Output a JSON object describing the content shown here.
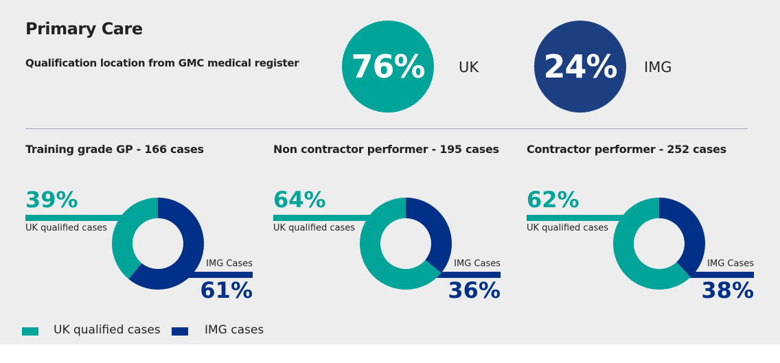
{
  "header": {
    "title": "Primary Care",
    "subtitle": "Qualification location from GMC medical register"
  },
  "summary": [
    {
      "value": "76%",
      "label": "UK",
      "color": "#00a499"
    },
    {
      "value": "24%",
      "label": "IMG",
      "color": "#1b3f80"
    }
  ],
  "chart_data": [
    {
      "type": "pie",
      "donut": true,
      "title": "Training grade GP - 166 cases",
      "categories": [
        "UK qualified cases",
        "IMG Cases"
      ],
      "values": [
        39,
        61
      ],
      "labels": [
        "39%",
        "61%"
      ]
    },
    {
      "type": "pie",
      "donut": true,
      "title": "Non contractor performer - 195 cases",
      "categories": [
        "UK qualified cases",
        "IMG Cases"
      ],
      "values": [
        64,
        36
      ],
      "labels": [
        "64%",
        "36%"
      ]
    },
    {
      "type": "pie",
      "donut": true,
      "title": "Contractor performer - 252 cases",
      "categories": [
        "UK qualified cases",
        "IMG Cases"
      ],
      "values": [
        62,
        38
      ],
      "labels": [
        "62%",
        "38%"
      ]
    }
  ],
  "colors": {
    "uk": "#00a499",
    "img": "#003087"
  },
  "legend": [
    {
      "label": "UK qualified cases"
    },
    {
      "label": "IMG cases"
    }
  ]
}
